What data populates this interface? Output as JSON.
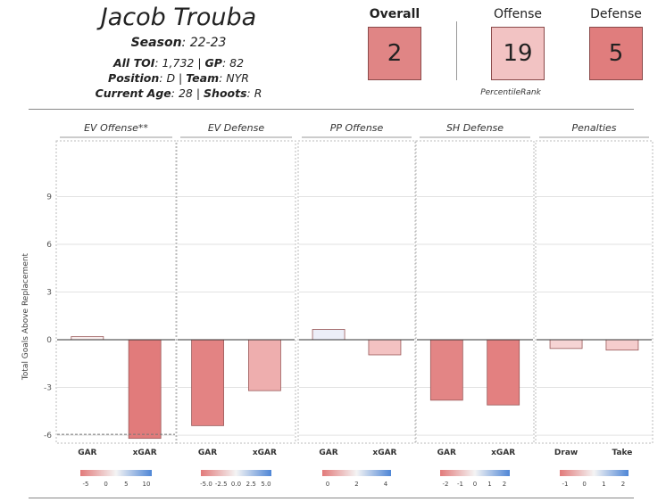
{
  "player": {
    "name": "Jacob Trouba",
    "season_label": "Season",
    "season_value": ": 22-23",
    "toi_label": "All TOI",
    "toi_value": ": 1,732 | ",
    "gp_label": "GP",
    "gp_value": ": 82",
    "position_label": "Position",
    "position_value": ": D | ",
    "team_label": "Team",
    "team_value": ": NYR",
    "age_label": "Current Age",
    "age_value": ": 28 | ",
    "shoots_label": "Shoots",
    "shoots_value": ": R"
  },
  "ranks": {
    "overall_label": "Overall",
    "overall_value": "2",
    "offense_label": "Offense",
    "offense_value": "19",
    "defense_label": "Defense",
    "defense_value": "5",
    "percentile_label": "PercentileRank",
    "colors": {
      "overall": "#e08585",
      "offense": "#f2c3c3",
      "defense": "#e07d7d"
    }
  },
  "chart_data": {
    "type": "bar",
    "ylabel": "Total Goals Above Replacement",
    "ylim": [
      -6.5,
      12.5
    ],
    "yticks": [
      "9",
      "6",
      "3",
      "0",
      "-3",
      "-6"
    ],
    "ytick_values": [
      9,
      6,
      3,
      0,
      -3,
      -6
    ],
    "grid": true,
    "panels": [
      {
        "title": "EV Offense**",
        "categories": [
          "GAR",
          "xGAR"
        ],
        "values": [
          0.2,
          -6.2
        ],
        "colors": [
          "#f9eded",
          "#e17b7b"
        ],
        "dashed_line": -5.95,
        "legend_ticks": [
          "-5",
          "0",
          "5",
          "10"
        ]
      },
      {
        "title": "EV Defense",
        "categories": [
          "GAR",
          "xGAR"
        ],
        "values": [
          -5.4,
          -3.2
        ],
        "colors": [
          "#e38383",
          "#eeaeae"
        ],
        "legend_ticks": [
          "-5.0",
          "-2.5",
          "0.0",
          "2.5",
          "5.0"
        ]
      },
      {
        "title": "PP Offense",
        "categories": [
          "GAR",
          "xGAR"
        ],
        "values": [
          0.65,
          -0.95
        ],
        "colors": [
          "#eceef8",
          "#f3c2c2"
        ],
        "legend_ticks": [
          "0",
          "2",
          "4"
        ]
      },
      {
        "title": "SH Defense",
        "categories": [
          "GAR",
          "xGAR"
        ],
        "values": [
          -3.8,
          -4.1
        ],
        "colors": [
          "#e38585",
          "#e38080"
        ],
        "legend_ticks": [
          "-2",
          "-1",
          "0",
          "1",
          "2"
        ]
      },
      {
        "title": "Penalties",
        "categories": [
          "Draw",
          "Take"
        ],
        "values": [
          -0.55,
          -0.65
        ],
        "colors": [
          "#f6d4d4",
          "#f5cdcd"
        ],
        "legend_ticks": [
          "-1",
          "0",
          "1",
          "2"
        ]
      }
    ]
  }
}
